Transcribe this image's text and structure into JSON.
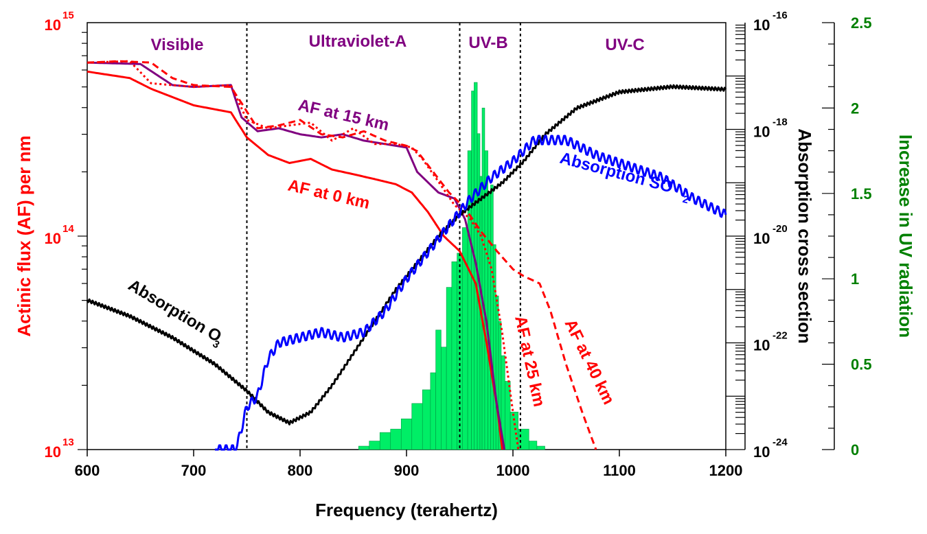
{
  "chart_data": {
    "type": "line",
    "xlabel": "Frequency (terahertz)",
    "xlim": [
      600,
      1200
    ],
    "x_ticks": [
      "600",
      "700",
      "800",
      "900",
      "1000",
      "1100",
      "1200"
    ],
    "y_left": {
      "label": "Actinic flux (AF) per nm",
      "scale": "log",
      "lim_exponents": [
        13,
        15
      ],
      "tick_base": "10",
      "tick_exponents": [
        "15",
        "14",
        "13"
      ],
      "color": "#ff0000"
    },
    "y_mid": {
      "label": "Absorption cross section",
      "scale": "log",
      "lim_exponents": [
        -24,
        -16
      ],
      "tick_base": "10",
      "tick_exponents": [
        "-16",
        "-18",
        "-20",
        "-22",
        "-24"
      ],
      "color": "#000000"
    },
    "y_right": {
      "label": "Increase in UV radiation",
      "scale": "linear",
      "lim": [
        0,
        2.5
      ],
      "ticks": [
        "2.5",
        "2",
        "1.5",
        "1",
        "0.5",
        "0"
      ],
      "color": "#008000"
    },
    "regions": [
      {
        "name": "Visible",
        "from": 600,
        "to": 750
      },
      {
        "name": "Ultraviolet-A",
        "from": 750,
        "to": 950
      },
      {
        "name": "UV-B",
        "from": 950,
        "to": 1007
      },
      {
        "name": "UV-C",
        "from": 1007,
        "to": 1200
      }
    ],
    "boundaries": [
      750,
      950,
      1007
    ],
    "series": [
      {
        "name": "AF at 0 km",
        "axis": "left",
        "color": "#ff0000",
        "style": "solid",
        "x": [
          600,
          640,
          660,
          700,
          735,
          750,
          770,
          790,
          810,
          830,
          850,
          870,
          890,
          905,
          920,
          935,
          950,
          965,
          975,
          985,
          990
        ],
        "y": [
          590000000000000.0,
          550000000000000.0,
          490000000000000.0,
          410000000000000.0,
          380000000000000.0,
          290000000000000.0,
          240000000000000.0,
          220000000000000.0,
          230000000000000.0,
          205000000000000.0,
          195000000000000.0,
          185000000000000.0,
          175000000000000.0,
          160000000000000.0,
          130000000000000.0,
          100000000000000.0,
          85000000000000.0,
          60000000000000.0,
          32000000000000.0,
          16000000000000.0,
          10000000000000.0
        ]
      },
      {
        "name": "AF at 15 km",
        "axis": "left",
        "color": "#800080",
        "style": "solid",
        "x": [
          600,
          650,
          680,
          700,
          735,
          745,
          760,
          780,
          800,
          820,
          840,
          860,
          880,
          900,
          910,
          930,
          945,
          955,
          965,
          975,
          985,
          992
        ],
        "y": [
          650000000000000.0,
          640000000000000.0,
          510000000000000.0,
          500000000000000.0,
          510000000000000.0,
          360000000000000.0,
          310000000000000.0,
          320000000000000.0,
          300000000000000.0,
          290000000000000.0,
          300000000000000.0,
          280000000000000.0,
          270000000000000.0,
          260000000000000.0,
          200000000000000.0,
          160000000000000.0,
          150000000000000.0,
          120000000000000.0,
          75000000000000.0,
          40000000000000.0,
          16000000000000.0,
          10000000000000.0
        ]
      },
      {
        "name": "AF at 25 km",
        "axis": "left",
        "color": "#ff0000",
        "style": "dotted",
        "x": [
          600,
          640,
          660,
          700,
          735,
          750,
          770,
          790,
          810,
          830,
          850,
          870,
          890,
          905,
          915,
          930,
          945,
          960,
          970,
          980,
          990,
          1000,
          1005
        ],
        "y": [
          650000000000000.0,
          660000000000000.0,
          520000000000000.0,
          500000000000000.0,
          510000000000000.0,
          350000000000000.0,
          320000000000000.0,
          330000000000000.0,
          340000000000000.0,
          280000000000000.0,
          320000000000000.0,
          270000000000000.0,
          270000000000000.0,
          260000000000000.0,
          230000000000000.0,
          180000000000000.0,
          140000000000000.0,
          120000000000000.0,
          100000000000000.0,
          70000000000000.0,
          35000000000000.0,
          15000000000000.0,
          10000000000000.0
        ]
      },
      {
        "name": "AF at 40 km",
        "axis": "left",
        "color": "#ff0000",
        "style": "dashed",
        "x": [
          600,
          630,
          660,
          680,
          700,
          735,
          745,
          760,
          780,
          800,
          820,
          840,
          860,
          880,
          900,
          910,
          925,
          940,
          955,
          970,
          985,
          1000,
          1010,
          1025,
          1035,
          1050,
          1065,
          1078
        ],
        "y": [
          650000000000000.0,
          660000000000000.0,
          650000000000000.0,
          550000000000000.0,
          510000000000000.0,
          500000000000000.0,
          420000000000000.0,
          320000000000000.0,
          330000000000000.0,
          350000000000000.0,
          300000000000000.0,
          290000000000000.0,
          310000000000000.0,
          280000000000000.0,
          265000000000000.0,
          250000000000000.0,
          200000000000000.0,
          160000000000000.0,
          135000000000000.0,
          105000000000000.0,
          85000000000000.0,
          70000000000000.0,
          65000000000000.0,
          60000000000000.0,
          45000000000000.0,
          25000000000000.0,
          15000000000000.0,
          10000000000000.0
        ]
      },
      {
        "name": "Absorption O3",
        "axis": "mid",
        "color": "#000000",
        "style": "solid",
        "x": [
          600,
          640,
          680,
          720,
          750,
          770,
          790,
          810,
          830,
          850,
          870,
          890,
          910,
          930,
          950,
          970,
          990,
          1010,
          1030,
          1060,
          1100,
          1150,
          1200
        ],
        "y": [
          -21.2,
          -21.5,
          -21.9,
          -22.4,
          -22.9,
          -23.3,
          -23.5,
          -23.3,
          -22.8,
          -22.2,
          -21.6,
          -21.0,
          -20.5,
          -20.0,
          -19.6,
          -19.3,
          -19.0,
          -18.6,
          -18.1,
          -17.6,
          -17.3,
          -17.2,
          -17.25
        ]
      },
      {
        "name": "Absorption SO2",
        "axis": "mid",
        "color": "#0000ff",
        "style": "solid",
        "x": [
          720,
          740,
          750,
          760,
          770,
          780,
          800,
          820,
          840,
          860,
          880,
          900,
          920,
          940,
          960,
          980,
          1000,
          1020,
          1050,
          1080,
          1110,
          1140,
          1170,
          1200
        ],
        "y": [
          -24.0,
          -24.0,
          -23.2,
          -23.0,
          -22.3,
          -22.0,
          -21.9,
          -21.8,
          -21.9,
          -21.8,
          -21.4,
          -20.8,
          -20.3,
          -19.8,
          -19.3,
          -18.9,
          -18.6,
          -18.2,
          -18.2,
          -18.5,
          -18.7,
          -18.9,
          -19.3,
          -19.6
        ]
      },
      {
        "name": "Increase in UV radiation",
        "axis": "right",
        "color": "#00ee66",
        "style": "histogram",
        "x": [
          860,
          870,
          880,
          890,
          900,
          910,
          920,
          925,
          930,
          935,
          940,
          945,
          950,
          955,
          960,
          962,
          965,
          968,
          970,
          972,
          975,
          978,
          980,
          983,
          985,
          988,
          990,
          995,
          1000,
          1010,
          1020,
          1025
        ],
        "y": [
          0.02,
          0.05,
          0.1,
          0.12,
          0.18,
          0.27,
          0.35,
          0.45,
          0.7,
          0.6,
          0.95,
          1.1,
          1.15,
          1.3,
          1.75,
          2.1,
          2.15,
          1.85,
          1.6,
          2.0,
          1.75,
          1.5,
          1.55,
          1.2,
          0.9,
          0.75,
          0.55,
          0.4,
          0.22,
          0.12,
          0.05,
          0.02
        ]
      }
    ],
    "annotations": [
      {
        "text": "AF at 15 km",
        "color": "#800080"
      },
      {
        "text": "AF at 0  km",
        "color": "#ff0000"
      },
      {
        "text": "AF at 25 km",
        "color": "#ff0000"
      },
      {
        "text": "AF at 40 km",
        "color": "#ff0000"
      },
      {
        "text": "Absorption O",
        "sub": "3",
        "color": "#000000"
      },
      {
        "text": "Absorption  SO",
        "sub": "2",
        "color": "#0000ff"
      }
    ]
  }
}
